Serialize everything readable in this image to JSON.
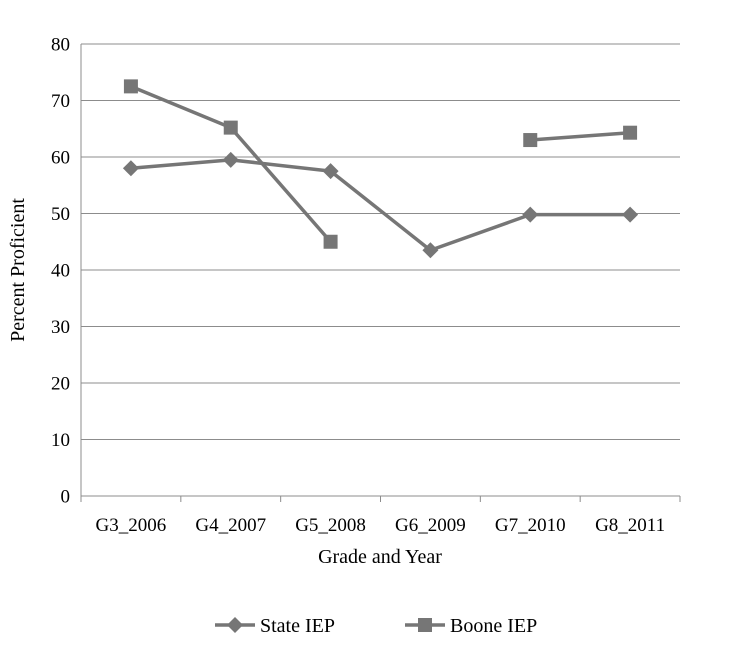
{
  "chart_data": {
    "type": "line",
    "title": "",
    "xlabel": "Grade and Year",
    "ylabel": "Percent Proficient",
    "categories": [
      "G3_2006",
      "G4_2007",
      "G5_2008",
      "G6_2009",
      "G7_2010",
      "G8_2011"
    ],
    "ylim": [
      0,
      80
    ],
    "yticks": [
      "0",
      "10",
      "20",
      "30",
      "40",
      "50",
      "60",
      "70",
      "80"
    ],
    "grid": "horizontal",
    "legend": "bottom",
    "series": [
      {
        "name": "State IEP",
        "marker": "diamond",
        "color": "#767676",
        "values": [
          58,
          59.5,
          57.5,
          43.5,
          49.8,
          49.8
        ]
      },
      {
        "name": "Boone IEP",
        "marker": "square",
        "color": "#767676",
        "values": [
          72.5,
          65.2,
          45,
          null,
          63,
          64.3
        ]
      }
    ]
  }
}
